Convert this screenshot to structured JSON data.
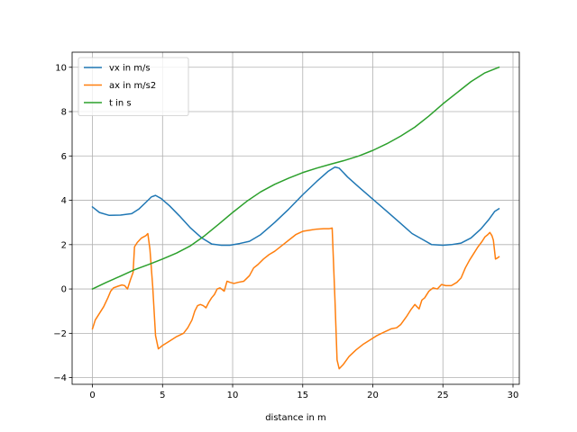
{
  "chart_data": {
    "type": "line",
    "title": "",
    "xlabel": "distance in m",
    "ylabel": "",
    "xlim": [
      -1.45,
      30.45
    ],
    "ylim": [
      -4.3,
      10.68
    ],
    "xticks": [
      0,
      5,
      10,
      15,
      20,
      25,
      30
    ],
    "yticks": [
      -4,
      -2,
      0,
      2,
      4,
      6,
      8,
      10
    ],
    "xtick_labels": [
      "0",
      "5",
      "10",
      "15",
      "20",
      "25",
      "30"
    ],
    "ytick_labels": [
      "−4",
      "−2",
      "0",
      "2",
      "4",
      "6",
      "8",
      "10"
    ],
    "grid": true,
    "legend_position": "upper-left",
    "colors": {
      "vx": "#1f77b4",
      "ax": "#ff7f0e",
      "t": "#2ca02c",
      "grid": "#b0b0b0",
      "axes": "#000000"
    },
    "series": [
      {
        "name": "vx in m/s",
        "color_key": "vx",
        "points": [
          [
            0,
            3.7
          ],
          [
            0.5,
            3.45
          ],
          [
            1.2,
            3.32
          ],
          [
            2,
            3.33
          ],
          [
            2.8,
            3.4
          ],
          [
            3.3,
            3.6
          ],
          [
            3.8,
            3.9
          ],
          [
            4.2,
            4.15
          ],
          [
            4.5,
            4.22
          ],
          [
            4.9,
            4.08
          ],
          [
            5.5,
            3.75
          ],
          [
            6.2,
            3.3
          ],
          [
            7,
            2.75
          ],
          [
            7.8,
            2.3
          ],
          [
            8.5,
            2.03
          ],
          [
            9.2,
            1.97
          ],
          [
            9.8,
            1.97
          ],
          [
            10.5,
            2.05
          ],
          [
            11.2,
            2.15
          ],
          [
            12,
            2.45
          ],
          [
            13,
            3.0
          ],
          [
            14,
            3.6
          ],
          [
            15,
            4.25
          ],
          [
            16,
            4.85
          ],
          [
            16.8,
            5.3
          ],
          [
            17.3,
            5.5
          ],
          [
            17.6,
            5.45
          ],
          [
            18.2,
            5.05
          ],
          [
            19,
            4.6
          ],
          [
            20,
            4.05
          ],
          [
            21,
            3.5
          ],
          [
            22,
            2.95
          ],
          [
            22.8,
            2.5
          ],
          [
            23.5,
            2.25
          ],
          [
            24.2,
            2.0
          ],
          [
            25,
            1.97
          ],
          [
            25.6,
            2.0
          ],
          [
            26.3,
            2.07
          ],
          [
            27,
            2.3
          ],
          [
            27.7,
            2.7
          ],
          [
            28.3,
            3.15
          ],
          [
            28.7,
            3.5
          ],
          [
            29,
            3.62
          ]
        ]
      },
      {
        "name": "ax in m/s2",
        "color_key": "ax",
        "points": [
          [
            0,
            -1.8
          ],
          [
            0.2,
            -1.4
          ],
          [
            0.5,
            -1.1
          ],
          [
            0.8,
            -0.8
          ],
          [
            1.1,
            -0.4
          ],
          [
            1.3,
            -0.1
          ],
          [
            1.5,
            0.05
          ],
          [
            1.8,
            0.12
          ],
          [
            2.1,
            0.18
          ],
          [
            2.3,
            0.15
          ],
          [
            2.5,
            0.0
          ],
          [
            2.7,
            0.4
          ],
          [
            2.9,
            0.75
          ],
          [
            3.0,
            1.9
          ],
          [
            3.2,
            2.1
          ],
          [
            3.5,
            2.3
          ],
          [
            3.8,
            2.4
          ],
          [
            3.95,
            2.5
          ],
          [
            4.1,
            1.8
          ],
          [
            4.3,
            0.1
          ],
          [
            4.5,
            -2.1
          ],
          [
            4.7,
            -2.7
          ],
          [
            5.0,
            -2.55
          ],
          [
            5.5,
            -2.35
          ],
          [
            6.0,
            -2.15
          ],
          [
            6.5,
            -2.0
          ],
          [
            6.8,
            -1.75
          ],
          [
            7.1,
            -1.4
          ],
          [
            7.3,
            -1.0
          ],
          [
            7.5,
            -0.75
          ],
          [
            7.7,
            -0.7
          ],
          [
            7.9,
            -0.75
          ],
          [
            8.1,
            -0.85
          ],
          [
            8.3,
            -0.6
          ],
          [
            8.5,
            -0.4
          ],
          [
            8.7,
            -0.25
          ],
          [
            8.9,
            0.0
          ],
          [
            9.1,
            0.05
          ],
          [
            9.4,
            -0.1
          ],
          [
            9.6,
            0.35
          ],
          [
            9.8,
            0.3
          ],
          [
            10.1,
            0.25
          ],
          [
            10.4,
            0.3
          ],
          [
            10.8,
            0.35
          ],
          [
            11.2,
            0.6
          ],
          [
            11.5,
            0.95
          ],
          [
            11.8,
            1.1
          ],
          [
            12.2,
            1.35
          ],
          [
            12.6,
            1.55
          ],
          [
            13.0,
            1.7
          ],
          [
            13.5,
            1.95
          ],
          [
            14.0,
            2.2
          ],
          [
            14.5,
            2.45
          ],
          [
            15.0,
            2.6
          ],
          [
            15.5,
            2.65
          ],
          [
            16.0,
            2.7
          ],
          [
            16.5,
            2.72
          ],
          [
            16.9,
            2.72
          ],
          [
            17.1,
            2.75
          ],
          [
            17.3,
            -0.5
          ],
          [
            17.45,
            -3.2
          ],
          [
            17.6,
            -3.6
          ],
          [
            17.9,
            -3.4
          ],
          [
            18.3,
            -3.05
          ],
          [
            18.8,
            -2.75
          ],
          [
            19.3,
            -2.5
          ],
          [
            19.8,
            -2.3
          ],
          [
            20.3,
            -2.1
          ],
          [
            20.8,
            -1.95
          ],
          [
            21.3,
            -1.8
          ],
          [
            21.7,
            -1.75
          ],
          [
            22.0,
            -1.6
          ],
          [
            22.4,
            -1.25
          ],
          [
            22.7,
            -0.95
          ],
          [
            23.0,
            -0.7
          ],
          [
            23.3,
            -0.9
          ],
          [
            23.5,
            -0.5
          ],
          [
            23.7,
            -0.4
          ],
          [
            24.0,
            -0.1
          ],
          [
            24.3,
            0.05
          ],
          [
            24.6,
            0.0
          ],
          [
            24.9,
            0.2
          ],
          [
            25.2,
            0.15
          ],
          [
            25.6,
            0.15
          ],
          [
            26.0,
            0.3
          ],
          [
            26.3,
            0.5
          ],
          [
            26.6,
            0.95
          ],
          [
            26.9,
            1.3
          ],
          [
            27.2,
            1.6
          ],
          [
            27.5,
            1.9
          ],
          [
            27.8,
            2.15
          ],
          [
            28.0,
            2.35
          ],
          [
            28.2,
            2.45
          ],
          [
            28.35,
            2.55
          ],
          [
            28.5,
            2.4
          ],
          [
            28.6,
            2.2
          ],
          [
            28.75,
            1.35
          ],
          [
            28.9,
            1.4
          ],
          [
            29.0,
            1.45
          ]
        ]
      },
      {
        "name": "t in s",
        "color_key": "t",
        "points": [
          [
            0,
            0
          ],
          [
            1,
            0.3
          ],
          [
            2,
            0.58
          ],
          [
            3,
            0.87
          ],
          [
            4,
            1.1
          ],
          [
            5,
            1.35
          ],
          [
            6,
            1.62
          ],
          [
            7,
            1.95
          ],
          [
            8,
            2.4
          ],
          [
            9,
            2.92
          ],
          [
            10,
            3.45
          ],
          [
            11,
            3.95
          ],
          [
            12,
            4.38
          ],
          [
            13,
            4.72
          ],
          [
            14,
            5.0
          ],
          [
            15,
            5.25
          ],
          [
            16,
            5.45
          ],
          [
            17,
            5.63
          ],
          [
            18,
            5.8
          ],
          [
            19,
            6.0
          ],
          [
            20,
            6.25
          ],
          [
            21,
            6.55
          ],
          [
            22,
            6.9
          ],
          [
            23,
            7.3
          ],
          [
            24,
            7.8
          ],
          [
            25,
            8.35
          ],
          [
            26,
            8.85
          ],
          [
            27,
            9.35
          ],
          [
            28,
            9.75
          ],
          [
            29,
            10.0
          ]
        ]
      }
    ]
  }
}
